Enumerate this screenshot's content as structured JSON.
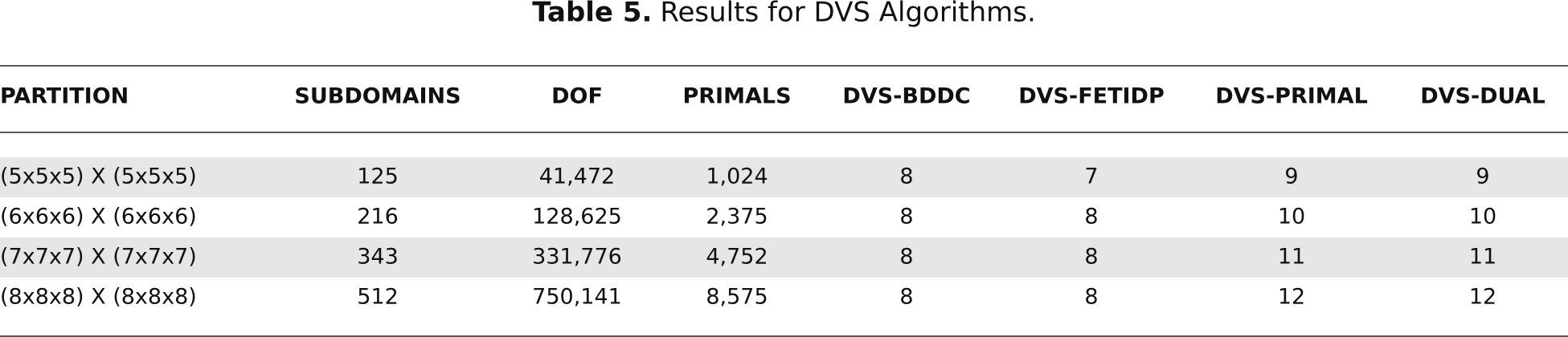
{
  "title": {
    "label": "Table 5.",
    "text": "Results for DVS Algorithms."
  },
  "table": {
    "header": [
      "PARTITION",
      "SUBDOMAINS",
      "DOF",
      "PRIMALS",
      "DVS-BDDC",
      "DVS-FETIDP",
      "DVS-PRIMAL",
      "DVS-DUAL"
    ],
    "rows": [
      [
        "(5x5x5) X (5x5x5)",
        "125",
        "41,472",
        "1,024",
        "8",
        "7",
        "9",
        "9"
      ],
      [
        "(6x6x6) X (6x6x6)",
        "216",
        "128,625",
        "2,375",
        "8",
        "8",
        "10",
        "10"
      ],
      [
        "(7x7x7) X (7x7x7)",
        "343",
        "331,776",
        "4,752",
        "8",
        "8",
        "11",
        "11"
      ],
      [
        "(8x8x8) X (8x8x8)",
        "512",
        "750,141",
        "8,575",
        "8",
        "8",
        "12",
        "12"
      ]
    ]
  }
}
